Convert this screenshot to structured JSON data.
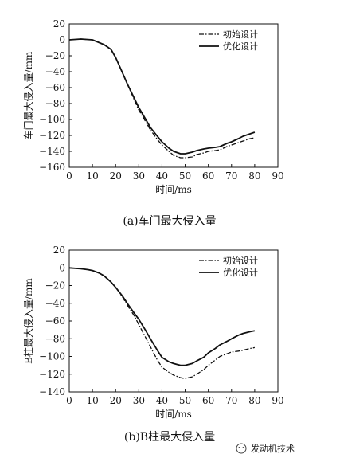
{
  "chart_data": [
    {
      "type": "line",
      "caption": "(a)车门最大侵入量",
      "xlabel": "时间/ms",
      "ylabel": "车门最大侵入量/mm",
      "xlim": [
        0,
        90
      ],
      "ylim": [
        -160,
        20
      ],
      "xticks": [
        0,
        10,
        20,
        30,
        40,
        50,
        60,
        70,
        80,
        90
      ],
      "yticks": [
        20,
        0,
        -20,
        -40,
        -60,
        -80,
        -100,
        -120,
        -140,
        -160
      ],
      "legend_position": "top-right",
      "grid": false,
      "series": [
        {
          "name": "初始设计",
          "style": "dash-dot",
          "x": [
            0,
            5,
            10,
            15,
            18,
            20,
            22,
            25,
            28,
            30,
            33,
            35,
            38,
            40,
            43,
            45,
            48,
            50,
            53,
            55,
            58,
            60,
            63,
            65,
            68,
            70,
            73,
            75,
            78,
            80
          ],
          "y": [
            0,
            1,
            0,
            -6,
            -12,
            -22,
            -35,
            -55,
            -75,
            -88,
            -103,
            -113,
            -125,
            -132,
            -140,
            -145,
            -148,
            -148,
            -147,
            -144,
            -142,
            -140,
            -139,
            -138,
            -134,
            -132,
            -129,
            -127,
            -124,
            -123
          ]
        },
        {
          "name": "优化设计",
          "style": "solid",
          "x": [
            0,
            5,
            10,
            15,
            18,
            20,
            22,
            25,
            28,
            30,
            33,
            35,
            38,
            40,
            43,
            45,
            48,
            50,
            53,
            55,
            58,
            60,
            63,
            65,
            68,
            70,
            73,
            75,
            78,
            80
          ],
          "y": [
            0,
            1,
            0,
            -6,
            -12,
            -22,
            -35,
            -55,
            -73,
            -85,
            -100,
            -110,
            -121,
            -128,
            -136,
            -140,
            -143,
            -143,
            -141,
            -139,
            -137,
            -136,
            -135,
            -134,
            -130,
            -128,
            -124,
            -121,
            -118,
            -116
          ]
        }
      ]
    },
    {
      "type": "line",
      "caption": "(b)B柱最大侵入量",
      "xlabel": "时间/ms",
      "ylabel": "B柱最大侵入量/mm",
      "xlim": [
        0,
        90
      ],
      "ylim": [
        -140,
        20
      ],
      "xticks": [
        0,
        10,
        20,
        30,
        40,
        50,
        60,
        70,
        80,
        90
      ],
      "yticks": [
        20,
        0,
        -20,
        -40,
        -60,
        -80,
        -100,
        -120,
        -140
      ],
      "legend_position": "top-right",
      "grid": false,
      "series": [
        {
          "name": "初始设计",
          "style": "dash-dot",
          "x": [
            0,
            5,
            8,
            10,
            13,
            15,
            18,
            20,
            23,
            25,
            28,
            30,
            33,
            35,
            38,
            40,
            43,
            45,
            48,
            50,
            53,
            55,
            58,
            60,
            63,
            65,
            68,
            70,
            73,
            75,
            78,
            80
          ],
          "y": [
            0,
            -1,
            -2,
            -3,
            -6,
            -9,
            -16,
            -22,
            -33,
            -42,
            -54,
            -64,
            -79,
            -89,
            -104,
            -112,
            -118,
            -121,
            -124,
            -125,
            -123,
            -120,
            -115,
            -110,
            -104,
            -100,
            -97,
            -95,
            -94,
            -93,
            -91,
            -90
          ]
        },
        {
          "name": "优化设计",
          "style": "solid",
          "x": [
            0,
            5,
            8,
            10,
            13,
            15,
            18,
            20,
            23,
            25,
            28,
            30,
            33,
            35,
            38,
            40,
            43,
            45,
            48,
            50,
            53,
            55,
            58,
            60,
            63,
            65,
            68,
            70,
            73,
            75,
            78,
            80
          ],
          "y": [
            0,
            -1,
            -2,
            -3,
            -6,
            -9,
            -16,
            -22,
            -32,
            -40,
            -51,
            -58,
            -71,
            -80,
            -93,
            -101,
            -106,
            -108,
            -110,
            -110,
            -108,
            -105,
            -101,
            -96,
            -91,
            -87,
            -83,
            -80,
            -76,
            -74,
            -72,
            -71
          ]
        }
      ]
    }
  ],
  "watermark": "发动机技术"
}
